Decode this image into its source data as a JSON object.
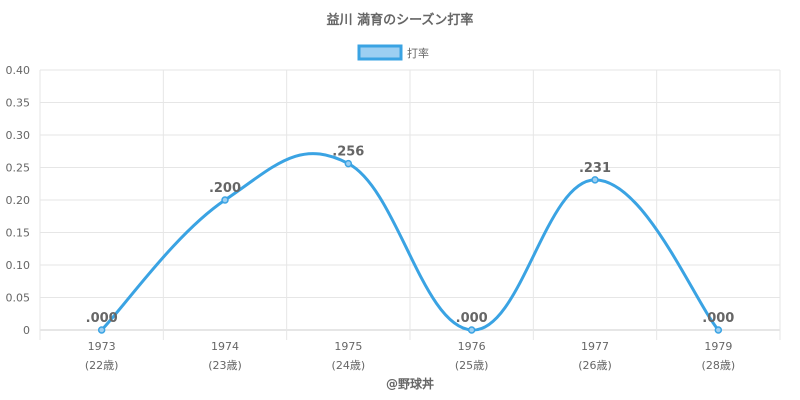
{
  "chart_data": {
    "type": "line",
    "title": "益川 満育のシーズン打率",
    "legend": {
      "position": "top",
      "label": "打率"
    },
    "categories": [
      "1973",
      "1974",
      "1975",
      "1976",
      "1977",
      "1979"
    ],
    "sublabels": [
      "(22歳)",
      "(23歳)",
      "(24歳)",
      "(25歳)",
      "(26歳)",
      "(28歳)"
    ],
    "series": [
      {
        "name": "打率",
        "values": [
          0.0,
          0.2,
          0.256,
          0.0,
          0.231,
          0.0
        ],
        "labels": [
          ".000",
          ".200",
          ".256",
          ".000",
          ".231",
          ".000"
        ],
        "color": "#3aa3e3"
      }
    ],
    "ylim": [
      0,
      0.4
    ],
    "yticks": [
      0,
      0.05,
      0.1,
      0.15,
      0.2,
      0.25,
      0.3,
      0.35,
      0.4
    ],
    "ytick_labels": [
      "0",
      "0.05",
      "0.10",
      "0.15",
      "0.20",
      "0.25",
      "0.30",
      "0.35",
      "0.40"
    ],
    "grid": true,
    "credit": "@野球丼"
  }
}
